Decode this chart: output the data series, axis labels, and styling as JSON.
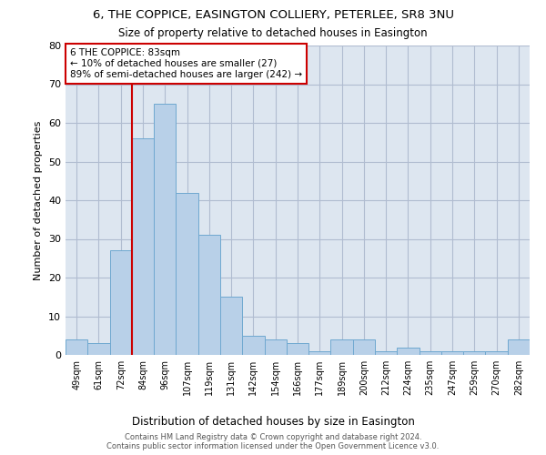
{
  "title": "6, THE COPPICE, EASINGTON COLLIERY, PETERLEE, SR8 3NU",
  "subtitle": "Size of property relative to detached houses in Easington",
  "xlabel": "Distribution of detached houses by size in Easington",
  "ylabel": "Number of detached properties",
  "categories": [
    "49sqm",
    "61sqm",
    "72sqm",
    "84sqm",
    "96sqm",
    "107sqm",
    "119sqm",
    "131sqm",
    "142sqm",
    "154sqm",
    "166sqm",
    "177sqm",
    "189sqm",
    "200sqm",
    "212sqm",
    "224sqm",
    "235sqm",
    "247sqm",
    "259sqm",
    "270sqm",
    "282sqm"
  ],
  "values": [
    4,
    3,
    27,
    56,
    65,
    42,
    31,
    15,
    5,
    4,
    3,
    1,
    4,
    4,
    1,
    2,
    1,
    1,
    1,
    1,
    4
  ],
  "bar_color": "#b8d0e8",
  "bar_edge_color": "#6fa8d0",
  "highlight_line_color": "#cc0000",
  "highlight_line_index": 3,
  "annotation_text": "6 THE COPPICE: 83sqm\n← 10% of detached houses are smaller (27)\n89% of semi-detached houses are larger (242) →",
  "annotation_box_color": "#ffffff",
  "annotation_box_edge": "#cc0000",
  "ylim": [
    0,
    80
  ],
  "yticks": [
    0,
    10,
    20,
    30,
    40,
    50,
    60,
    70,
    80
  ],
  "background_color": "#ffffff",
  "plot_bg_color": "#dde6f0",
  "grid_color": "#b0bcd0",
  "footer_line1": "Contains HM Land Registry data © Crown copyright and database right 2024.",
  "footer_line2": "Contains public sector information licensed under the Open Government Licence v3.0."
}
